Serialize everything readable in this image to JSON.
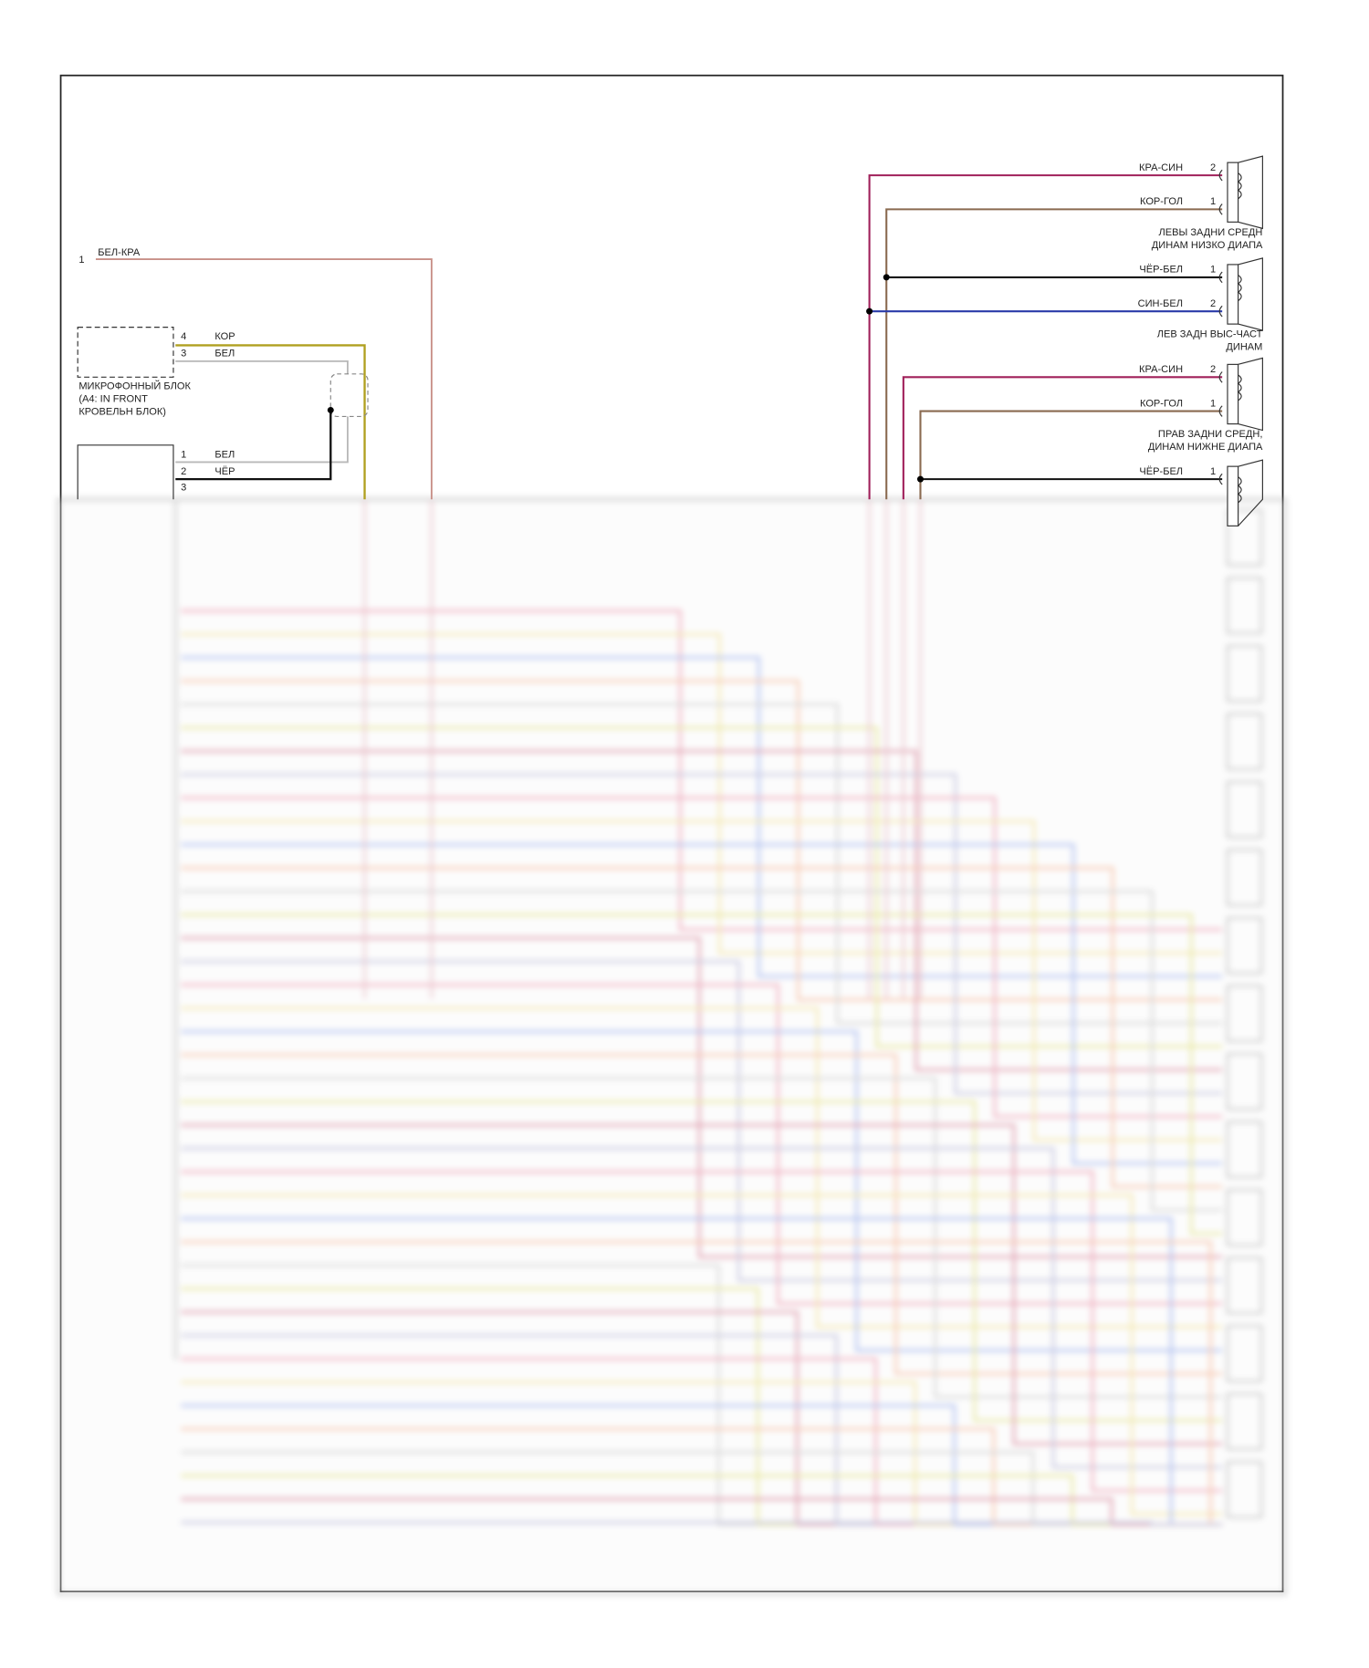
{
  "top_wire": {
    "pin": "1",
    "label": "БЕЛ-КРА"
  },
  "microphone_block": {
    "pins": [
      {
        "pin": "4",
        "wire": "КОР"
      },
      {
        "pin": "3",
        "wire": "БЕЛ"
      }
    ],
    "label": [
      "МИКРОФОННЫЙ БЛОК",
      "(A4: IN FRONT",
      "КРОВЕЛЬН БЛОК)"
    ]
  },
  "radio_connector": {
    "pins": [
      {
        "pin": "1",
        "wire": "БЕЛ"
      },
      {
        "pin": "2",
        "wire": "ЧЁР"
      },
      {
        "pin": "3"
      }
    ]
  },
  "speakers": [
    {
      "wires": [
        {
          "label": "КРА-СИН",
          "pin": "2"
        },
        {
          "label": "КОР-ГОЛ",
          "pin": "1"
        }
      ],
      "name": [
        "ЛЕВЫ ЗАДНИ СРЕДН",
        "ДИНАМ НИЗКО ДИАПА"
      ]
    },
    {
      "wires": [
        {
          "label": "ЧЁР-БЕЛ",
          "pin": "1"
        },
        {
          "label": "СИН-БЕЛ",
          "pin": "2"
        }
      ],
      "name": [
        "ЛЕВ ЗАДН ВЫС-ЧАСТ",
        "ДИНАМ"
      ]
    },
    {
      "wires": [
        {
          "label": "КРА-СИН",
          "pin": "2"
        },
        {
          "label": "КОР-ГОЛ",
          "pin": "1"
        }
      ],
      "name": [
        "ПРАВ ЗАДНИ СРЕДН,",
        "ДИНАМ НИЖНЕ ДИАПА"
      ]
    },
    {
      "wires": [
        {
          "label": "ЧЁР-БЕЛ",
          "pin": "1"
        }
      ]
    }
  ]
}
